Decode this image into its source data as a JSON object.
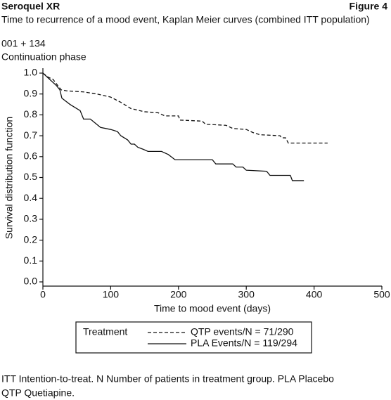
{
  "chart_data": {
    "type": "line",
    "title": "Seroquel XR",
    "figure_label": "Figure 4",
    "subtitle": "Time to recurrence of a mood event, Kaplan Meier curves (combined ITT population)",
    "study": "001 + 134",
    "phase": "Continuation phase",
    "x_label": "Time to mood event (days)",
    "y_label": "Survival distribution function",
    "legend_title": "Treatment",
    "xlim": [
      0,
      500
    ],
    "xticks": [
      0,
      100,
      200,
      300,
      400,
      500
    ],
    "ylim": [
      0,
      1
    ],
    "yticks": [
      {
        "value": 0,
        "label": "0.0"
      },
      0.1,
      0.2,
      0.3,
      0.4,
      0.5,
      0.6,
      0.7,
      0.8,
      0.9,
      {
        "value": 1,
        "label": "1.0"
      }
    ],
    "series": [
      {
        "name": "QTP events/N = 71/290",
        "color": "#111111",
        "dash": true,
        "x": [
          0,
          8,
          15,
          22,
          27,
          35,
          60,
          80,
          100,
          115,
          130,
          150,
          170,
          180,
          200,
          202,
          235,
          240,
          270,
          280,
          300,
          310,
          320,
          350,
          352,
          358,
          362,
          420
        ],
        "values": [
          1.0,
          0.98,
          0.97,
          0.94,
          0.92,
          0.915,
          0.91,
          0.9,
          0.885,
          0.86,
          0.83,
          0.815,
          0.81,
          0.795,
          0.795,
          0.775,
          0.77,
          0.755,
          0.75,
          0.735,
          0.73,
          0.715,
          0.705,
          0.7,
          0.69,
          0.69,
          0.665,
          0.665
        ]
      },
      {
        "name": "PLA Events/N = 119/294",
        "color": "#111111",
        "dash": false,
        "x": [
          0,
          10,
          20,
          25,
          28,
          40,
          55,
          60,
          70,
          85,
          100,
          110,
          115,
          125,
          130,
          135,
          140,
          148,
          155,
          175,
          185,
          195,
          250,
          255,
          280,
          285,
          295,
          300,
          330,
          335,
          365,
          368,
          385
        ],
        "values": [
          1.0,
          0.97,
          0.94,
          0.92,
          0.88,
          0.85,
          0.82,
          0.78,
          0.78,
          0.74,
          0.73,
          0.72,
          0.7,
          0.68,
          0.66,
          0.66,
          0.645,
          0.635,
          0.625,
          0.625,
          0.61,
          0.585,
          0.585,
          0.565,
          0.565,
          0.55,
          0.55,
          0.535,
          0.53,
          0.51,
          0.51,
          0.485,
          0.485
        ]
      }
    ]
  },
  "notes": [
    "ITT Intention-to-treat. N Number of patients in treatment group. PLA Placebo",
    "QTP Quetiapine."
  ]
}
